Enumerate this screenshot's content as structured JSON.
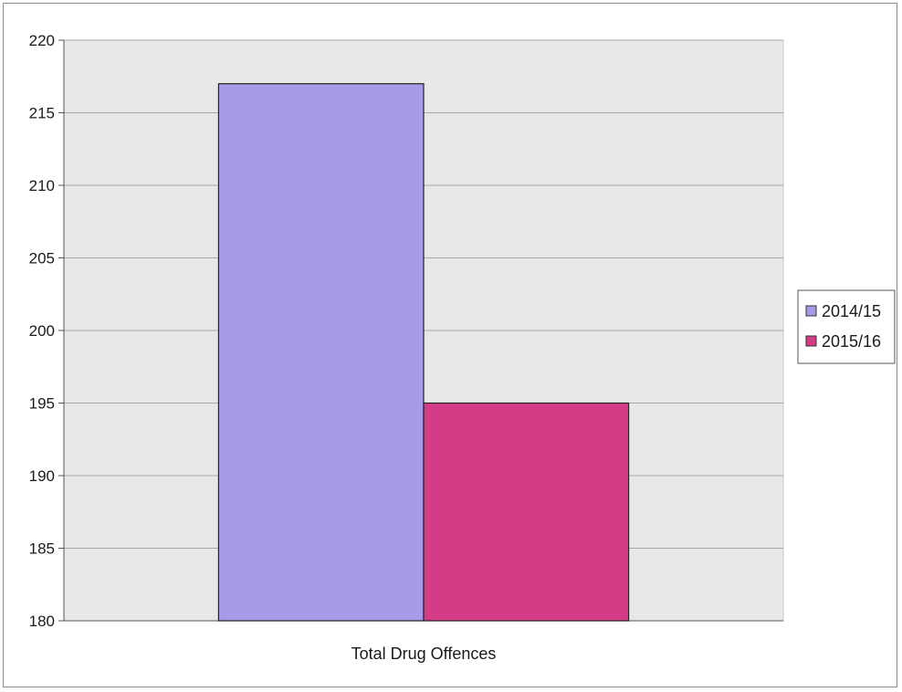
{
  "chart_data": {
    "type": "bar",
    "title": "",
    "xlabel": "",
    "ylabel": "",
    "categories": [
      "Total Drug Offences"
    ],
    "series": [
      {
        "name": "2014/15",
        "values": [
          217
        ],
        "color": "#a59be6"
      },
      {
        "name": "2015/16",
        "values": [
          195
        ],
        "color": "#d43c87"
      }
    ],
    "ylim": [
      180,
      220
    ],
    "yticks": [
      180,
      185,
      190,
      195,
      200,
      205,
      210,
      215,
      220
    ],
    "grid": true,
    "legend_position": "right",
    "plot_background": "#e8e8e6"
  }
}
